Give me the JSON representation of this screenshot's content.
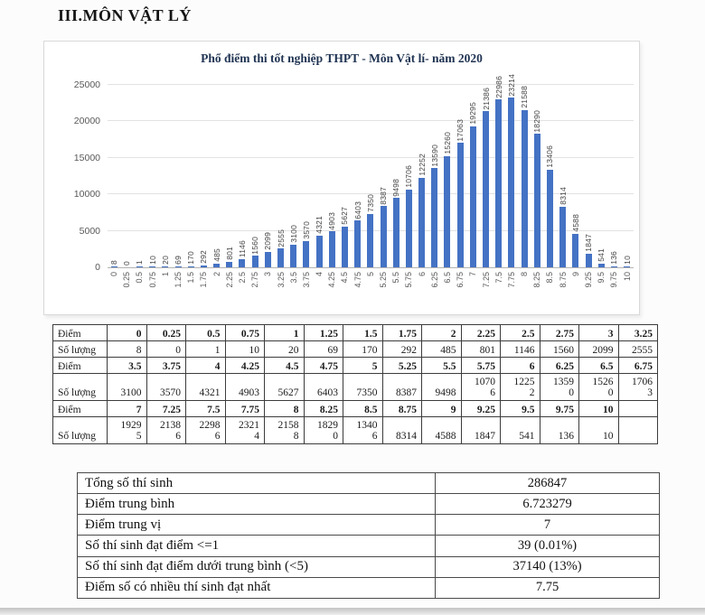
{
  "page_title": "III.MÔN VẬT LÝ",
  "colors": {
    "bar": "#4472c4",
    "chart_title": "#1f3352"
  },
  "chart_data": {
    "type": "bar",
    "title": "Phổ điểm thi tốt nghiệp THPT - Môn Vật lí- năm 2020",
    "categories": [
      "0",
      "0.25",
      "0.5",
      "0.75",
      "1",
      "1.25",
      "1.5",
      "1.75",
      "2",
      "2.25",
      "2.5",
      "2.75",
      "3",
      "3.25",
      "3.5",
      "3.75",
      "4",
      "4.25",
      "4.5",
      "4.75",
      "5",
      "5.25",
      "5.5",
      "5.75",
      "6",
      "6.25",
      "6.5",
      "6.75",
      "7",
      "7.25",
      "7.5",
      "7.75",
      "8",
      "8.25",
      "8.5",
      "8.75",
      "9",
      "9.25",
      "9.5",
      "9.75",
      "10"
    ],
    "values": [
      8,
      0,
      1,
      10,
      20,
      69,
      170,
      292,
      485,
      801,
      1146,
      1560,
      2099,
      2555,
      3100,
      3570,
      4321,
      4903,
      5627,
      6403,
      7350,
      8387,
      9498,
      10706,
      12252,
      13590,
      15260,
      17063,
      19295,
      21386,
      22986,
      23214,
      21588,
      18290,
      13406,
      8314,
      4588,
      1847,
      541,
      136,
      10
    ],
    "xlabel": "",
    "ylabel": "",
    "ylim": [
      0,
      25000
    ],
    "yticks": [
      0,
      5000,
      10000,
      15000,
      20000,
      25000
    ],
    "grid": true,
    "legend": "none",
    "bar_label_rotation": 90,
    "x_tick_rotation": 90
  },
  "score_table": {
    "rows": [
      {
        "label": "Điểm",
        "style": "diem",
        "tall": false,
        "cells": [
          "0",
          "0.25",
          "0.5",
          "0.75",
          "1",
          "1.25",
          "1.5",
          "1.75",
          "2",
          "2.25",
          "2.5",
          "2.75",
          "3",
          "3.25"
        ]
      },
      {
        "label": "Số lượng",
        "style": "soluong",
        "tall": false,
        "cells": [
          "8",
          "0",
          "1",
          "10",
          "20",
          "69",
          "170",
          "292",
          "485",
          "801",
          "1146",
          "1560",
          "2099",
          "2555"
        ]
      },
      {
        "label": "Điểm",
        "style": "diem",
        "tall": false,
        "cells": [
          "3.5",
          "3.75",
          "4",
          "4.25",
          "4.5",
          "4.75",
          "5",
          "5.25",
          "5.5",
          "5.75",
          "6",
          "6.25",
          "6.5",
          "6.75"
        ]
      },
      {
        "label": "Số lượng",
        "style": "soluong",
        "tall": true,
        "cells": [
          "3100",
          "3570",
          "4321",
          "4903",
          "5627",
          "6403",
          "7350",
          "8387",
          "9498",
          "1070\n6",
          "1225\n2",
          "1359\n0",
          "1526\n0",
          "1706\n3"
        ]
      },
      {
        "label": "Điểm",
        "style": "diem",
        "tall": false,
        "cells": [
          "7",
          "7.25",
          "7.5",
          "7.75",
          "8",
          "8.25",
          "8.5",
          "8.75",
          "9",
          "9.25",
          "9.5",
          "9.75",
          "10",
          ""
        ]
      },
      {
        "label": "Số lượng",
        "style": "soluong",
        "tall": true,
        "cells": [
          "1929\n5",
          "2138\n6",
          "2298\n6",
          "2321\n4",
          "2158\n8",
          "1829\n0",
          "1340\n6",
          "8314",
          "4588",
          "1847",
          "541",
          "136",
          "10",
          ""
        ]
      }
    ]
  },
  "summary_table": {
    "rows": [
      {
        "label": "Tổng số thí sinh",
        "value": "286847"
      },
      {
        "label": "Điểm trung bình",
        "value": "6.723279"
      },
      {
        "label": "Điểm trung vị",
        "value": "7"
      },
      {
        "label": "Số thí sinh đạt điểm <=1",
        "value": "39 (0.01%)"
      },
      {
        "label": "Số thí sinh đạt điểm dưới trung bình (<5)",
        "value": "37140 (13%)"
      },
      {
        "label": "Điểm số có nhiều thí sinh đạt nhất",
        "value": "7.75"
      }
    ]
  }
}
